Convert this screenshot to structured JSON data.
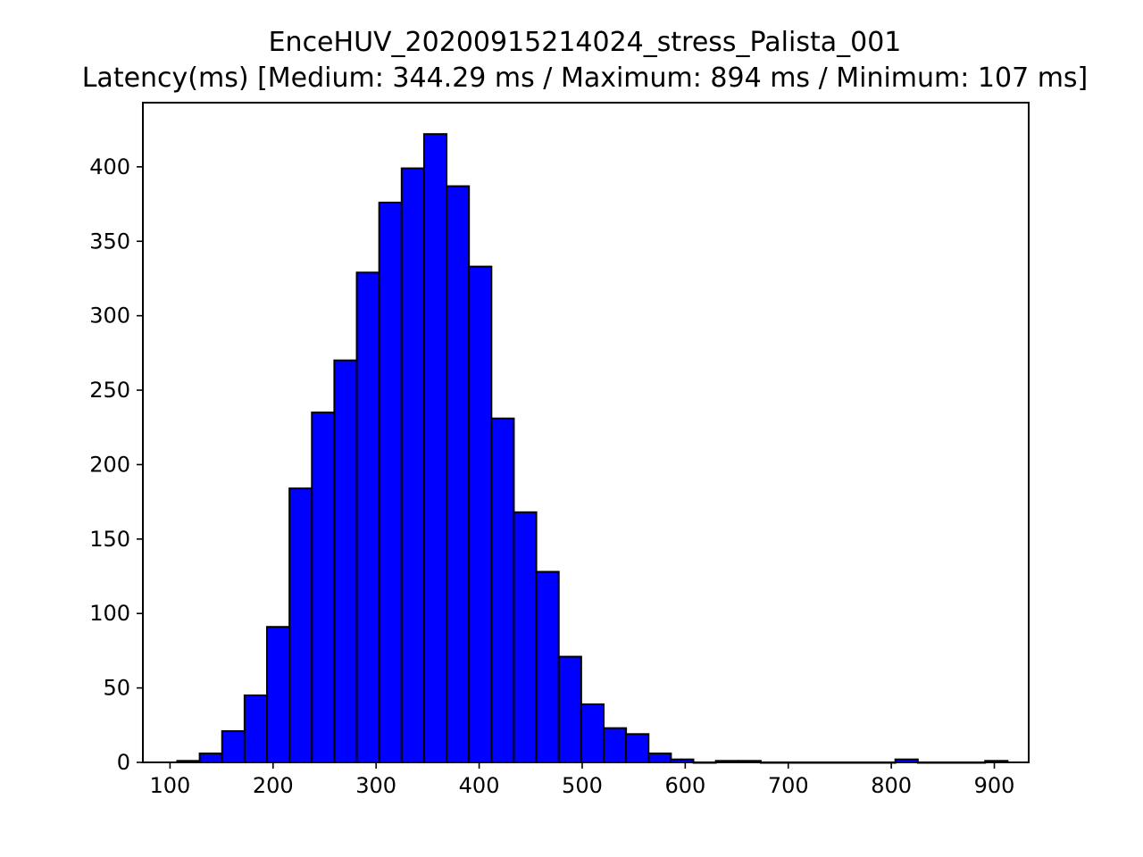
{
  "chart_data": {
    "type": "bar",
    "title": "EnceHUV_20200915214024_stress_Palista_001",
    "subtitle": "Latency(ms) [Medium: 344.29 ms / Maximum: 894 ms / Minimum: 107 ms]",
    "xlabel": "",
    "ylabel": "",
    "xlim": [
      73.65,
      933.35
    ],
    "ylim": [
      0,
      443.1
    ],
    "bin_width": 21.78,
    "bin_start": 107,
    "values": [
      1,
      6,
      21,
      45,
      91,
      184,
      235,
      270,
      329,
      376,
      399,
      422,
      387,
      333,
      231,
      168,
      128,
      71,
      39,
      23,
      19,
      6,
      2,
      0,
      1,
      1,
      0,
      0,
      0,
      0,
      0,
      0,
      2,
      0,
      0,
      0,
      1
    ],
    "xticks": [
      100,
      200,
      300,
      400,
      500,
      600,
      700,
      800,
      900
    ],
    "yticks": [
      0,
      50,
      100,
      150,
      200,
      250,
      300,
      350,
      400
    ],
    "grid": false,
    "legend": "none",
    "bar_color": "#0000ff",
    "edge_color": "#000000"
  }
}
